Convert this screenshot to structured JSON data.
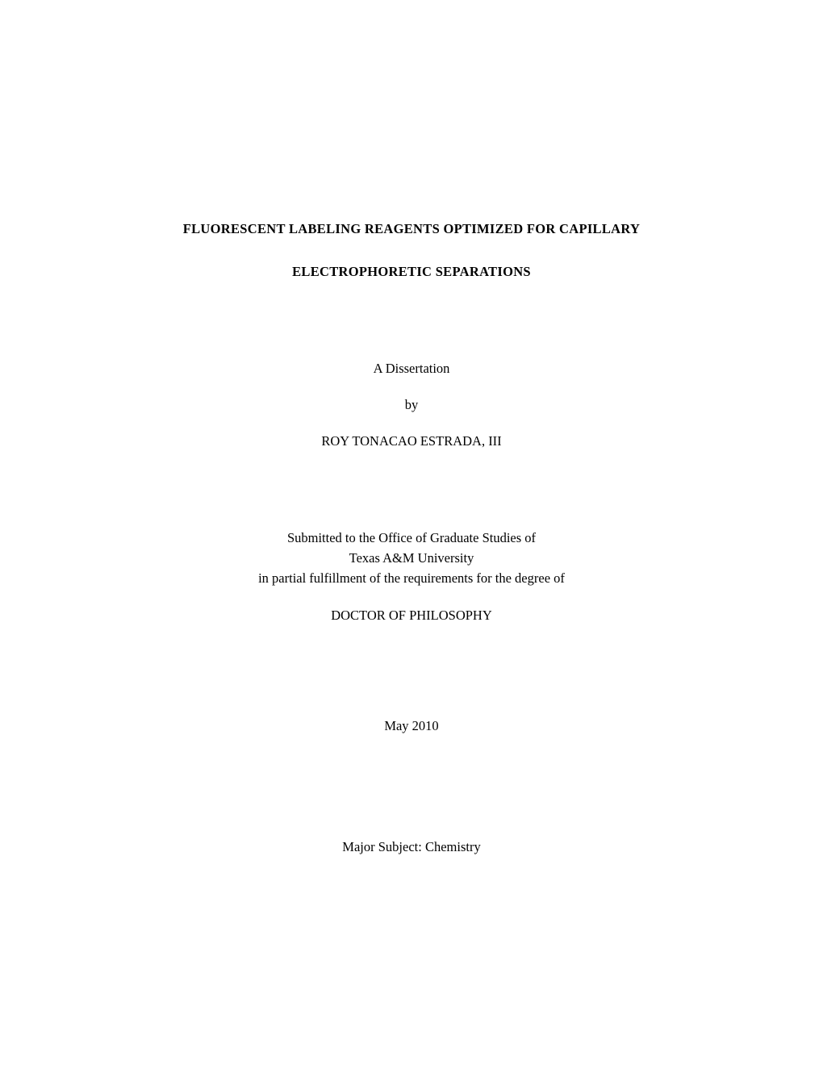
{
  "document": {
    "type": "dissertation-title-page",
    "background_color": "#ffffff",
    "text_color": "#000000",
    "font_family": "Times New Roman",
    "base_font_size_pt": 12
  },
  "title": {
    "line1": "FLUORESCENT LABELING REAGENTS OPTIMIZED FOR CAPILLARY",
    "line2": "ELECTROPHORETIC SEPARATIONS",
    "font_weight": "bold",
    "font_size_pt": 13
  },
  "dissertation": {
    "label": "A Dissertation",
    "by": "by",
    "author": "ROY TONACAO ESTRADA, III"
  },
  "submission": {
    "line1": "Submitted to the Office of Graduate Studies of",
    "line2": "Texas A&M University",
    "line3": "in partial fulfillment of the requirements for the degree of",
    "degree": "DOCTOR OF PHILOSOPHY"
  },
  "date": "May 2010",
  "subject": "Major Subject: Chemistry"
}
